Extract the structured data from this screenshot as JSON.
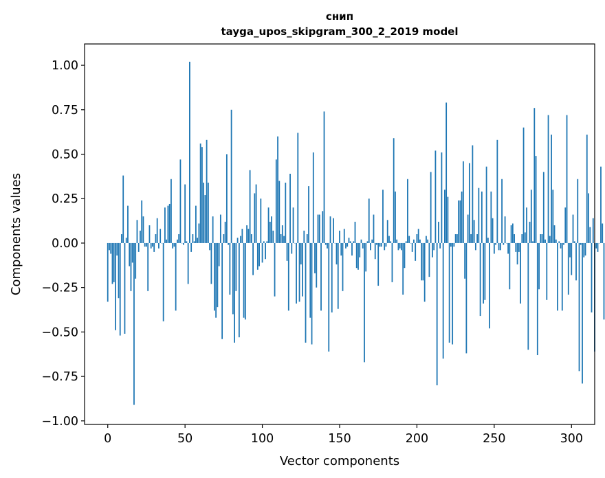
{
  "chart_data": {
    "type": "bar",
    "title_line1": "снип",
    "title_line2": "tayga_upos_skipgram_300_2_2019 model",
    "xlabel": "Vector components",
    "ylabel": "Components values",
    "xlim": [
      -15,
      315
    ],
    "ylim": [
      -1.02,
      1.12
    ],
    "xticks": [
      0,
      50,
      100,
      150,
      200,
      250,
      300
    ],
    "yticks": [
      "-1.00",
      "-0.75",
      "-0.50",
      "-0.25",
      "0.00",
      "0.25",
      "0.50",
      "0.75",
      "1.00"
    ],
    "bar_color": "#1f77b4",
    "values": [
      -0.33,
      -0.04,
      -0.06,
      -0.23,
      -0.22,
      -0.49,
      -0.07,
      -0.31,
      -0.52,
      0.05,
      0.38,
      -0.51,
      0.03,
      0.21,
      -0.13,
      -0.27,
      -0.11,
      -0.91,
      -0.2,
      0.13,
      -0.05,
      0.07,
      0.24,
      0.15,
      -0.02,
      -0.02,
      -0.27,
      0.1,
      -0.03,
      -0.02,
      -0.05,
      0.05,
      0.14,
      -0.03,
      0.08,
      0.0,
      -0.44,
      0.2,
      0.02,
      0.21,
      0.22,
      0.36,
      -0.03,
      -0.02,
      -0.38,
      0.02,
      0.05,
      0.47,
      0.0,
      -0.01,
      0.33,
      0.01,
      -0.23,
      1.02,
      -0.05,
      0.05,
      0.01,
      0.21,
      0.03,
      0.11,
      0.56,
      0.54,
      0.34,
      0.27,
      0.58,
      0.34,
      -0.04,
      -0.23,
      0.15,
      -0.38,
      -0.42,
      -0.36,
      -0.13,
      0.16,
      -0.54,
      0.05,
      0.12,
      0.5,
      -0.01,
      -0.29,
      0.75,
      -0.4,
      -0.56,
      -0.27,
      0.03,
      -0.53,
      0.04,
      0.08,
      -0.42,
      -0.43,
      0.1,
      0.08,
      0.41,
      0.05,
      -0.18,
      0.28,
      0.33,
      -0.15,
      -0.13,
      0.25,
      -0.11,
      0.01,
      -0.09,
      0.01,
      0.2,
      0.12,
      0.15,
      0.07,
      -0.3,
      0.47,
      0.6,
      0.35,
      0.05,
      0.1,
      0.04,
      0.34,
      -0.1,
      -0.38,
      0.39,
      -0.06,
      0.2,
      0.0,
      -0.34,
      0.62,
      -0.33,
      -0.12,
      -0.3,
      0.07,
      -0.56,
      0.05,
      0.32,
      -0.42,
      -0.57,
      0.51,
      -0.17,
      -0.25,
      0.16,
      0.16,
      -0.38,
      0.18,
      0.74,
      -0.01,
      -0.03,
      -0.61,
      0.15,
      -0.39,
      0.14,
      0.0,
      -0.12,
      -0.37,
      0.07,
      -0.07,
      -0.27,
      0.08,
      -0.03,
      -0.02,
      0.03,
      0.01,
      -0.07,
      0.01,
      0.12,
      -0.14,
      -0.15,
      -0.08,
      0.02,
      -0.03,
      -0.67,
      -0.16,
      0.01,
      0.25,
      -0.04,
      0.02,
      0.16,
      -0.09,
      -0.01,
      -0.24,
      -0.02,
      -0.02,
      0.3,
      -0.04,
      -0.02,
      0.13,
      0.04,
      0.01,
      -0.22,
      0.59,
      0.29,
      0.02,
      -0.04,
      -0.03,
      -0.04,
      -0.29,
      -0.14,
      0.01,
      0.36,
      0.04,
      0.0,
      -0.05,
      0.02,
      -0.1,
      0.05,
      0.08,
      0.02,
      -0.21,
      -0.21,
      -0.33,
      0.04,
      0.02,
      -0.19,
      0.4,
      -0.08,
      -0.04,
      0.52,
      -0.8,
      0.12,
      -0.03,
      0.51,
      -0.65,
      0.3,
      0.79,
      0.26,
      -0.56,
      -0.02,
      -0.57,
      -0.02,
      0.05,
      0.05,
      0.24,
      0.24,
      0.29,
      0.46,
      -0.2,
      -0.62,
      0.16,
      0.45,
      0.05,
      0.55,
      0.13,
      -0.04,
      0.05,
      0.31,
      -0.41,
      0.29,
      -0.34,
      -0.32,
      0.43,
      0.03,
      -0.48,
      0.29,
      0.14,
      -0.06,
      -0.01,
      0.58,
      -0.04,
      -0.04,
      0.36,
      -0.01,
      0.15,
      0.0,
      -0.06,
      -0.26,
      0.1,
      0.11,
      0.05,
      -0.05,
      -0.12,
      -0.05,
      -0.34,
      0.05,
      0.65,
      0.06,
      0.2,
      -0.6,
      0.12,
      0.3,
      0.01,
      0.76,
      0.49,
      -0.63,
      -0.26,
      0.05,
      0.05,
      0.4,
      0.02,
      -0.32,
      0.72,
      0.04,
      0.61,
      0.3,
      0.1,
      0.02,
      -0.38,
      0.01,
      -0.03,
      -0.38,
      -0.01,
      0.2,
      0.72,
      -0.29,
      -0.08,
      -0.18,
      0.16,
      0.01,
      -0.21,
      0.36,
      -0.72,
      -0.01,
      -0.79,
      -0.08,
      -0.07,
      0.61,
      0.28,
      0.09,
      -0.39,
      0.14,
      -0.61,
      -0.03,
      -0.05,
      0.0,
      0.43,
      0.11,
      -0.43
    ]
  }
}
